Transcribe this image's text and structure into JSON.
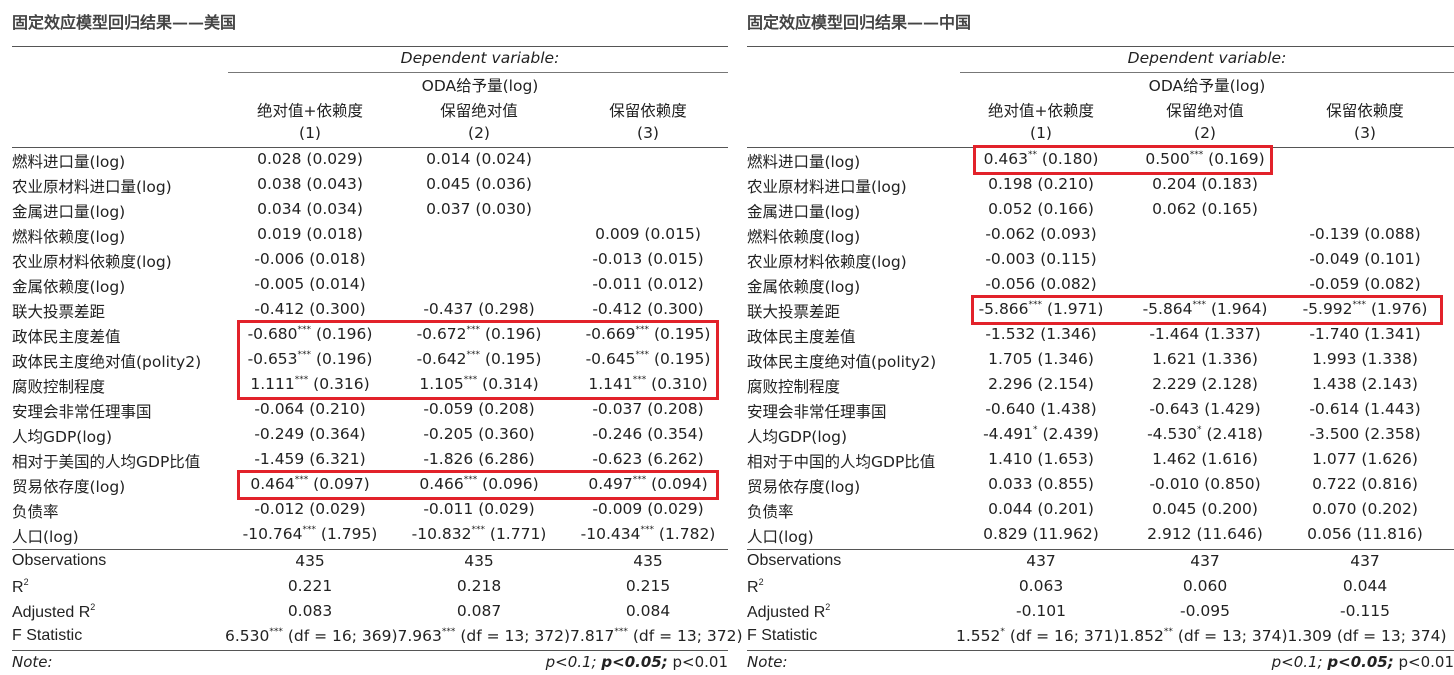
{
  "panels": [
    {
      "title": "固定效应模型回归结果——美国",
      "dependent_variable": "Dependent variable:",
      "dep_var_name": "ODA给予量(log)",
      "columns": [
        {
          "name": "绝对值+依赖度",
          "num": "(1)"
        },
        {
          "name": "保留绝对值",
          "num": "(2)"
        },
        {
          "name": "保留依赖度",
          "num": "(3)"
        }
      ],
      "rows": [
        {
          "label": "燃料进口量(log)",
          "cells": [
            {
              "v": "0.028",
              "s": "",
              "se": "(0.029)"
            },
            {
              "v": "0.014",
              "s": "",
              "se": "(0.024)"
            },
            {
              "v": "",
              "s": "",
              "se": ""
            }
          ]
        },
        {
          "label": "农业原材料进口量(log)",
          "cells": [
            {
              "v": "0.038",
              "s": "",
              "se": "(0.043)"
            },
            {
              "v": "0.045",
              "s": "",
              "se": "(0.036)"
            },
            {
              "v": "",
              "s": "",
              "se": ""
            }
          ]
        },
        {
          "label": "金属进口量(log)",
          "cells": [
            {
              "v": "0.034",
              "s": "",
              "se": "(0.034)"
            },
            {
              "v": "0.037",
              "s": "",
              "se": "(0.030)"
            },
            {
              "v": "",
              "s": "",
              "se": ""
            }
          ]
        },
        {
          "label": "燃料依赖度(log)",
          "cells": [
            {
              "v": "0.019",
              "s": "",
              "se": "(0.018)"
            },
            {
              "v": "",
              "s": "",
              "se": ""
            },
            {
              "v": "0.009",
              "s": "",
              "se": "(0.015)"
            }
          ]
        },
        {
          "label": "农业原材料依赖度(log)",
          "cells": [
            {
              "v": "-0.006",
              "s": "",
              "se": "(0.018)"
            },
            {
              "v": "",
              "s": "",
              "se": ""
            },
            {
              "v": "-0.013",
              "s": "",
              "se": "(0.015)"
            }
          ]
        },
        {
          "label": "金属依赖度(log)",
          "cells": [
            {
              "v": "-0.005",
              "s": "",
              "se": "(0.014)"
            },
            {
              "v": "",
              "s": "",
              "se": ""
            },
            {
              "v": "-0.011",
              "s": "",
              "se": "(0.012)"
            }
          ]
        },
        {
          "label": "联大投票差距",
          "cells": [
            {
              "v": "-0.412",
              "s": "",
              "se": "(0.300)"
            },
            {
              "v": "-0.437",
              "s": "",
              "se": "(0.298)"
            },
            {
              "v": "-0.412",
              "s": "",
              "se": "(0.300)"
            }
          ]
        },
        {
          "label": "政体民主度差值",
          "cells": [
            {
              "v": "-0.680",
              "s": "***",
              "se": "(0.196)"
            },
            {
              "v": "-0.672",
              "s": "***",
              "se": "(0.196)"
            },
            {
              "v": "-0.669",
              "s": "***",
              "se": "(0.195)"
            }
          ]
        },
        {
          "label": "政体民主度绝对值(polity2)",
          "cells": [
            {
              "v": "-0.653",
              "s": "***",
              "se": "(0.196)"
            },
            {
              "v": "-0.642",
              "s": "***",
              "se": "(0.195)"
            },
            {
              "v": "-0.645",
              "s": "***",
              "se": "(0.195)"
            }
          ]
        },
        {
          "label": "腐败控制程度",
          "cells": [
            {
              "v": "1.111",
              "s": "***",
              "se": "(0.316)"
            },
            {
              "v": "1.105",
              "s": "***",
              "se": "(0.314)"
            },
            {
              "v": "1.141",
              "s": "***",
              "se": "(0.310)"
            }
          ]
        },
        {
          "label": "安理会非常任理事国",
          "cells": [
            {
              "v": "-0.064",
              "s": "",
              "se": "(0.210)"
            },
            {
              "v": "-0.059",
              "s": "",
              "se": "(0.208)"
            },
            {
              "v": "-0.037",
              "s": "",
              "se": "(0.208)"
            }
          ]
        },
        {
          "label": "人均GDP(log)",
          "cells": [
            {
              "v": "-0.249",
              "s": "",
              "se": "(0.364)"
            },
            {
              "v": "-0.205",
              "s": "",
              "se": "(0.360)"
            },
            {
              "v": "-0.246",
              "s": "",
              "se": "(0.354)"
            }
          ]
        },
        {
          "label": "相对于美国的人均GDP比值",
          "cells": [
            {
              "v": "-1.459",
              "s": "",
              "se": "(6.321)"
            },
            {
              "v": "-1.826",
              "s": "",
              "se": "(6.286)"
            },
            {
              "v": "-0.623",
              "s": "",
              "se": "(6.262)"
            }
          ]
        },
        {
          "label": "贸易依存度(log)",
          "cells": [
            {
              "v": "0.464",
              "s": "***",
              "se": "(0.097)"
            },
            {
              "v": "0.466",
              "s": "***",
              "se": "(0.096)"
            },
            {
              "v": "0.497",
              "s": "***",
              "se": "(0.094)"
            }
          ]
        },
        {
          "label": "负债率",
          "cells": [
            {
              "v": "-0.012",
              "s": "",
              "se": "(0.029)"
            },
            {
              "v": "-0.011",
              "s": "",
              "se": "(0.029)"
            },
            {
              "v": "-0.009",
              "s": "",
              "se": "(0.029)"
            }
          ]
        },
        {
          "label": "人口(log)",
          "cells": [
            {
              "v": "-10.764",
              "s": "***",
              "se": "(1.795)"
            },
            {
              "v": "-10.832",
              "s": "***",
              "se": "(1.771)"
            },
            {
              "v": "-10.434",
              "s": "***",
              "se": "(1.782)"
            }
          ]
        }
      ],
      "stats": {
        "obs_label": "Observations",
        "obs": [
          "435",
          "435",
          "435"
        ],
        "r2_label": "R",
        "r2_sup": "2",
        "r2": [
          "0.221",
          "0.218",
          "0.215"
        ],
        "adjr2_label": "Adjusted R",
        "adjr2_sup": "2",
        "adjr2": [
          "0.083",
          "0.087",
          "0.084"
        ],
        "f_label": "F Statistic",
        "f": [
          {
            "v": "6.530",
            "s": "***",
            "df": "(df = 16; 369)"
          },
          {
            "v": "7.963",
            "s": "***",
            "df": "(df = 13; 372)"
          },
          {
            "v": "7.817",
            "s": "***",
            "df": "(df = 13; 372)"
          }
        ]
      },
      "note_label": "Note:",
      "note_p1": "p<0.1;",
      "note_p2": "p<0.05;",
      "note_p3": "p<0.01"
    },
    {
      "title": "固定效应模型回归结果——中国",
      "dependent_variable": "Dependent variable:",
      "dep_var_name": "ODA给予量(log)",
      "columns": [
        {
          "name": "绝对值+依赖度",
          "num": "(1)"
        },
        {
          "name": "保留绝对值",
          "num": "(2)"
        },
        {
          "name": "保留依赖度",
          "num": "(3)"
        }
      ],
      "rows": [
        {
          "label": "燃料进口量(log)",
          "cells": [
            {
              "v": "0.463",
              "s": "**",
              "se": "(0.180)"
            },
            {
              "v": "0.500",
              "s": "***",
              "se": "(0.169)"
            },
            {
              "v": "",
              "s": "",
              "se": ""
            }
          ]
        },
        {
          "label": "农业原材料进口量(log)",
          "cells": [
            {
              "v": "0.198",
              "s": "",
              "se": "(0.210)"
            },
            {
              "v": "0.204",
              "s": "",
              "se": "(0.183)"
            },
            {
              "v": "",
              "s": "",
              "se": ""
            }
          ]
        },
        {
          "label": "金属进口量(log)",
          "cells": [
            {
              "v": "0.052",
              "s": "",
              "se": "(0.166)"
            },
            {
              "v": "0.062",
              "s": "",
              "se": "(0.165)"
            },
            {
              "v": "",
              "s": "",
              "se": ""
            }
          ]
        },
        {
          "label": "燃料依赖度(log)",
          "cells": [
            {
              "v": "-0.062",
              "s": "",
              "se": "(0.093)"
            },
            {
              "v": "",
              "s": "",
              "se": ""
            },
            {
              "v": "-0.139",
              "s": "",
              "se": "(0.088)"
            }
          ]
        },
        {
          "label": "农业原材料依赖度(log)",
          "cells": [
            {
              "v": "-0.003",
              "s": "",
              "se": "(0.115)"
            },
            {
              "v": "",
              "s": "",
              "se": ""
            },
            {
              "v": "-0.049",
              "s": "",
              "se": "(0.101)"
            }
          ]
        },
        {
          "label": "金属依赖度(log)",
          "cells": [
            {
              "v": "-0.056",
              "s": "",
              "se": "(0.082)"
            },
            {
              "v": "",
              "s": "",
              "se": ""
            },
            {
              "v": "-0.059",
              "s": "",
              "se": "(0.082)"
            }
          ]
        },
        {
          "label": "联大投票差距",
          "cells": [
            {
              "v": "-5.866",
              "s": "***",
              "se": "(1.971)"
            },
            {
              "v": "-5.864",
              "s": "***",
              "se": "(1.964)"
            },
            {
              "v": "-5.992",
              "s": "***",
              "se": "(1.976)"
            }
          ]
        },
        {
          "label": "政体民主度差值",
          "cells": [
            {
              "v": "-1.532",
              "s": "",
              "se": "(1.346)"
            },
            {
              "v": "-1.464",
              "s": "",
              "se": "(1.337)"
            },
            {
              "v": "-1.740",
              "s": "",
              "se": "(1.341)"
            }
          ]
        },
        {
          "label": "政体民主度绝对值(polity2)",
          "cells": [
            {
              "v": "1.705",
              "s": "",
              "se": "(1.346)"
            },
            {
              "v": "1.621",
              "s": "",
              "se": "(1.336)"
            },
            {
              "v": "1.993",
              "s": "",
              "se": "(1.338)"
            }
          ]
        },
        {
          "label": "腐败控制程度",
          "cells": [
            {
              "v": "2.296",
              "s": "",
              "se": "(2.154)"
            },
            {
              "v": "2.229",
              "s": "",
              "se": "(2.128)"
            },
            {
              "v": "1.438",
              "s": "",
              "se": "(2.143)"
            }
          ]
        },
        {
          "label": "安理会非常任理事国",
          "cells": [
            {
              "v": "-0.640",
              "s": "",
              "se": "(1.438)"
            },
            {
              "v": "-0.643",
              "s": "",
              "se": "(1.429)"
            },
            {
              "v": "-0.614",
              "s": "",
              "se": "(1.443)"
            }
          ]
        },
        {
          "label": "人均GDP(log)",
          "cells": [
            {
              "v": "-4.491",
              "s": "*",
              "se": "(2.439)"
            },
            {
              "v": "-4.530",
              "s": "*",
              "se": "(2.418)"
            },
            {
              "v": "-3.500",
              "s": "",
              "se": "(2.358)"
            }
          ]
        },
        {
          "label": "相对于中国的人均GDP比值",
          "cells": [
            {
              "v": "1.410",
              "s": "",
              "se": "(1.653)"
            },
            {
              "v": "1.462",
              "s": "",
              "se": "(1.616)"
            },
            {
              "v": "1.077",
              "s": "",
              "se": "(1.626)"
            }
          ]
        },
        {
          "label": "贸易依存度(log)",
          "cells": [
            {
              "v": "0.033",
              "s": "",
              "se": "(0.855)"
            },
            {
              "v": "-0.010",
              "s": "",
              "se": "(0.850)"
            },
            {
              "v": "0.722",
              "s": "",
              "se": "(0.816)"
            }
          ]
        },
        {
          "label": "负债率",
          "cells": [
            {
              "v": "0.044",
              "s": "",
              "se": "(0.201)"
            },
            {
              "v": "0.045",
              "s": "",
              "se": "(0.200)"
            },
            {
              "v": "0.070",
              "s": "",
              "se": "(0.202)"
            }
          ]
        },
        {
          "label": "人口(log)",
          "cells": [
            {
              "v": "0.829",
              "s": "",
              "se": "(11.962)"
            },
            {
              "v": "2.912",
              "s": "",
              "se": "(11.646)"
            },
            {
              "v": "0.056",
              "s": "",
              "se": "(11.816)"
            }
          ]
        }
      ],
      "stats": {
        "obs_label": "Observations",
        "obs": [
          "437",
          "437",
          "437"
        ],
        "r2_label": "R",
        "r2_sup": "2",
        "r2": [
          "0.063",
          "0.060",
          "0.044"
        ],
        "adjr2_label": "Adjusted R",
        "adjr2_sup": "2",
        "adjr2": [
          "-0.101",
          "-0.095",
          "-0.115"
        ],
        "f_label": "F Statistic",
        "f": [
          {
            "v": "1.552",
            "s": "*",
            "df": "(df = 16; 371)"
          },
          {
            "v": "1.852",
            "s": "**",
            "df": "(df = 13; 374)"
          },
          {
            "v": "1.309",
            "s": "",
            "df": "(df = 13; 374)"
          }
        ]
      },
      "note_label": "Note:",
      "note_p1": "p<0.1;",
      "note_p2": "p<0.05;",
      "note_p3": "p<0.01"
    }
  ],
  "highlight_color": "#e2222a"
}
